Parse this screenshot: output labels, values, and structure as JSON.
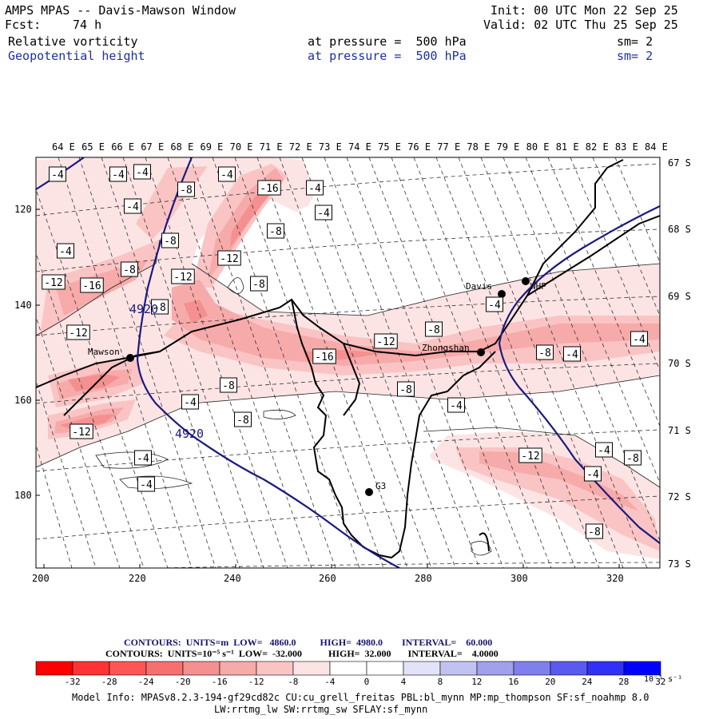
{
  "header": {
    "title": "AMPS MPAS -- Davis-Mawson Window",
    "fcst_label": "Fcst:",
    "fcst_value": "74 h",
    "init": "Init: 00 UTC Mon 22 Sep 25",
    "valid": "Valid: 02 UTC Thu 25 Sep 25",
    "field1": {
      "name": "Relative vorticity",
      "level": "at pressure =  500 hPa",
      "smooth": "sm= 2"
    },
    "field2": {
      "name": "Geopotential height",
      "level": "at pressure =  500 hPa",
      "smooth": "sm= 2"
    }
  },
  "axes": {
    "top_lon": [
      "64 E",
      "65 E",
      "66 E",
      "67 E",
      "68 E",
      "69 E",
      "70 E",
      "71 E",
      "72 E",
      "73 E",
      "74 E",
      "75 E",
      "76 E",
      "77 E",
      "78 E",
      "79 E",
      "80 E",
      "81 E",
      "82 E",
      "83 E",
      "84 E"
    ],
    "right_lat": [
      "67 S",
      "68 S",
      "69 S",
      "70 S",
      "71 S",
      "72 S",
      "73 S"
    ],
    "left_y": [
      "120",
      "140",
      "160",
      "180"
    ],
    "bottom_x": [
      "200",
      "220",
      "240",
      "260",
      "280",
      "300",
      "320"
    ]
  },
  "stations": [
    {
      "name": "Davis"
    },
    {
      "name": "WHP"
    },
    {
      "name": "Mawson"
    },
    {
      "name": "Zhongshan"
    },
    {
      "name": "G3"
    }
  ],
  "contour_labels": {
    "vorticity": [
      "-4",
      "-4",
      "-4",
      "-4",
      "-8",
      "-16",
      "-4",
      "-4",
      "-4",
      "-8",
      "-8",
      "-4",
      "-12",
      "-8",
      "-12",
      "-12",
      "-16",
      "-8",
      "-12",
      "-8",
      "-8",
      "-12",
      "-16",
      "-8",
      "-8",
      "-4",
      "-4",
      "-4",
      "-8",
      "-4",
      "-8",
      "-4",
      "-12",
      "-12",
      "-4",
      "-4",
      "-4",
      "-8",
      "-4",
      "-8"
    ],
    "height": [
      "4920",
      "4920"
    ]
  },
  "footer": {
    "line1": "CONTOURS:  UNITS=m  LOW=   4860.0          HIGH=  4980.0        INTERVAL=    60.000",
    "line2": "CONTOURS:  UNITS=10⁻⁵ s⁻¹  LOW=  -32.000           HIGH=  32.000       INTERVAL=    4.0000",
    "colorbar_ticks": [
      "-32",
      "-28",
      "-24",
      "-20",
      "-16",
      "-12",
      "-8",
      "-4",
      "0",
      "4",
      "8",
      "12",
      "16",
      "20",
      "24",
      "28",
      "32"
    ],
    "colorbar_unit": "10⁻⁵ s⁻¹",
    "colorbar_colors": [
      "#ff0000",
      "#ff3333",
      "#ff5555",
      "#f77070",
      "#f59090",
      "#f7aaaa",
      "#fac4c4",
      "#fde4e4",
      "#ffffff",
      "#ffffff",
      "#e2e2f8",
      "#c2c2f2",
      "#a0a0ec",
      "#8080ec",
      "#5a5af0",
      "#3030f6",
      "#0000ff"
    ],
    "model_info": "Model Info: MPASv8.2.3-194-gf29cd82c CU:cu_grell_freitas PBL:bl_mynn MP:mp_thompson SF:sf_noahmp 8.0",
    "model_info2": "LW:rrtmg_lw SW:rrtmg_sw SFLAY:sf_mynn"
  }
}
